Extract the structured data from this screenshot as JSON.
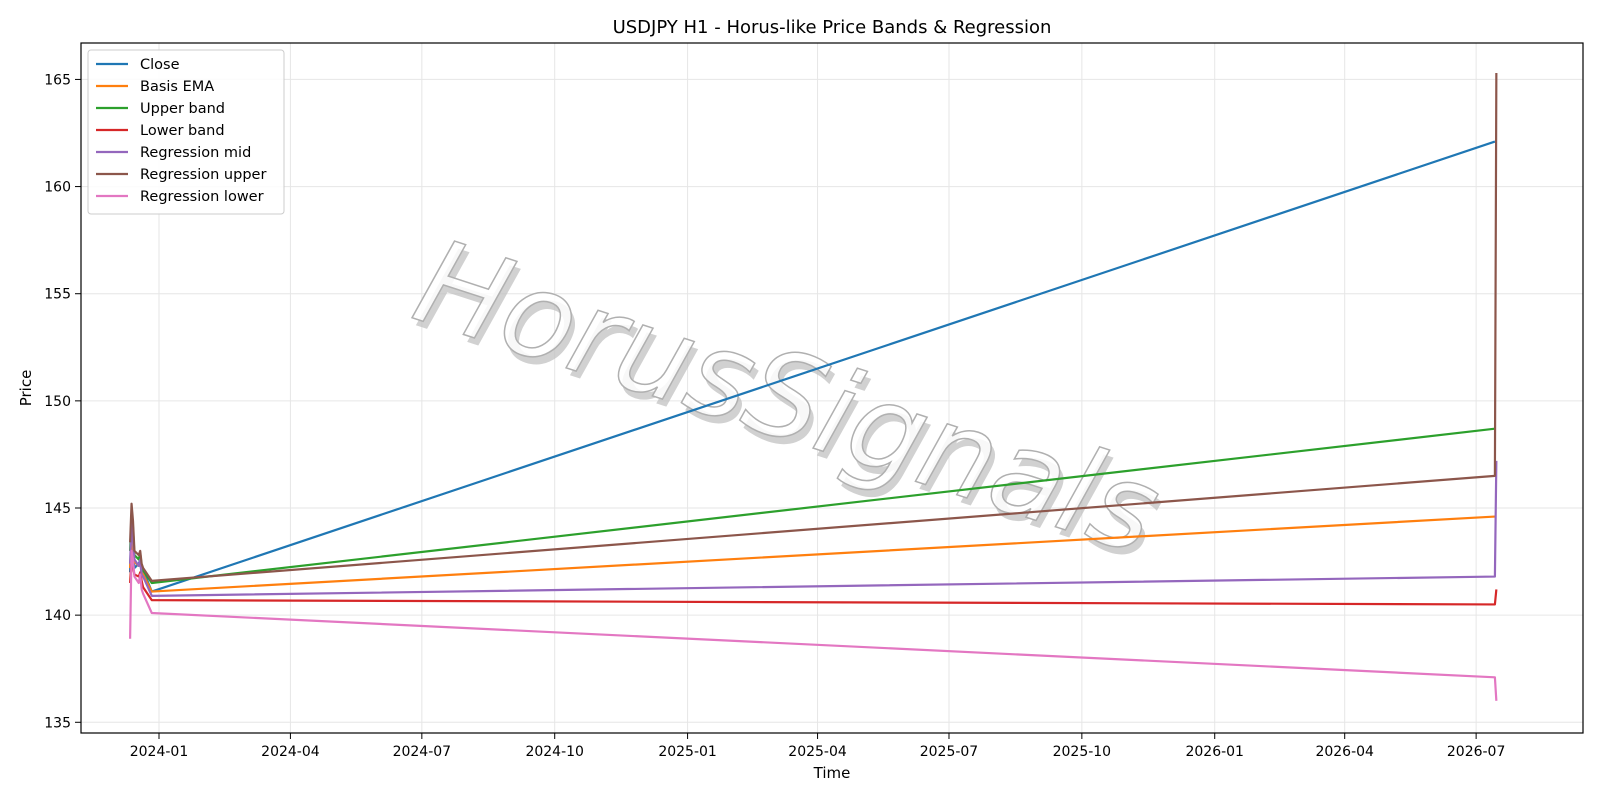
{
  "chart_data": {
    "type": "line",
    "title": "USDJPY H1 - Horus-like Price Bands & Regression",
    "xlabel": "Time",
    "ylabel": "Price",
    "watermark": "HorusSignals",
    "x_axis_type": "date",
    "xlim": [
      "2023-11-08",
      "2026-09-13"
    ],
    "ylim": [
      134.5,
      166.7
    ],
    "x_ticks": [
      "2024-01",
      "2024-04",
      "2024-07",
      "2024-10",
      "2025-01",
      "2025-04",
      "2025-07",
      "2025-10",
      "2026-01",
      "2026-04",
      "2026-07"
    ],
    "y_ticks": [
      135,
      140,
      145,
      150,
      155,
      160,
      165
    ],
    "grid": true,
    "legend_position": "upper-left",
    "series": [
      {
        "name": "Close",
        "color": "#1f77b4",
        "points": [
          [
            "2023-12-12",
            142.0
          ],
          [
            "2023-12-13",
            144.4
          ],
          [
            "2023-12-14",
            143.0
          ],
          [
            "2023-12-15",
            142.2
          ],
          [
            "2023-12-18",
            142.4
          ],
          [
            "2023-12-19",
            142.6
          ],
          [
            "2023-12-20",
            141.8
          ],
          [
            "2023-12-21",
            142.1
          ],
          [
            "2023-12-27",
            141.1
          ],
          [
            "2026-07-14",
            162.1
          ]
        ]
      },
      {
        "name": "Basis EMA",
        "color": "#ff7f0e",
        "points": [
          [
            "2023-12-12",
            142.2
          ],
          [
            "2023-12-13",
            143.6
          ],
          [
            "2023-12-14",
            143.0
          ],
          [
            "2023-12-15",
            142.5
          ],
          [
            "2023-12-18",
            142.3
          ],
          [
            "2023-12-19",
            142.5
          ],
          [
            "2023-12-20",
            142.0
          ],
          [
            "2023-12-21",
            141.9
          ],
          [
            "2023-12-27",
            141.1
          ],
          [
            "2026-07-14",
            144.6
          ]
        ]
      },
      {
        "name": "Upper band",
        "color": "#2ca02c",
        "points": [
          [
            "2023-12-12",
            143.0
          ],
          [
            "2023-12-13",
            144.7
          ],
          [
            "2023-12-14",
            144.1
          ],
          [
            "2023-12-15",
            142.8
          ],
          [
            "2023-12-18",
            142.6
          ],
          [
            "2023-12-19",
            142.9
          ],
          [
            "2023-12-20",
            142.3
          ],
          [
            "2023-12-21",
            142.1
          ],
          [
            "2023-12-27",
            141.5
          ],
          [
            "2026-07-14",
            148.7
          ]
        ]
      },
      {
        "name": "Lower band",
        "color": "#d62728",
        "points": [
          [
            "2023-12-12",
            141.5
          ],
          [
            "2023-12-13",
            142.6
          ],
          [
            "2023-12-14",
            142.2
          ],
          [
            "2023-12-15",
            141.9
          ],
          [
            "2023-12-18",
            141.8
          ],
          [
            "2023-12-19",
            142.0
          ],
          [
            "2023-12-20",
            141.6
          ],
          [
            "2023-12-21",
            141.3
          ],
          [
            "2023-12-27",
            140.7
          ],
          [
            "2026-07-14",
            140.5
          ],
          [
            "2026-07-15",
            141.2
          ]
        ]
      },
      {
        "name": "Regression mid",
        "color": "#9467bd",
        "points": [
          [
            "2023-12-12",
            142.4
          ],
          [
            "2023-12-13",
            144.3
          ],
          [
            "2023-12-14",
            143.5
          ],
          [
            "2023-12-15",
            142.6
          ],
          [
            "2023-12-18",
            142.3
          ],
          [
            "2023-12-19",
            142.6
          ],
          [
            "2023-12-20",
            141.9
          ],
          [
            "2023-12-21",
            141.8
          ],
          [
            "2023-12-27",
            140.9
          ],
          [
            "2026-07-14",
            141.8
          ],
          [
            "2026-07-15",
            147.2
          ]
        ]
      },
      {
        "name": "Regression upper",
        "color": "#8c564b",
        "points": [
          [
            "2023-12-12",
            143.4
          ],
          [
            "2023-12-13",
            145.2
          ],
          [
            "2023-12-14",
            144.4
          ],
          [
            "2023-12-15",
            143.0
          ],
          [
            "2023-12-18",
            142.8
          ],
          [
            "2023-12-19",
            143.0
          ],
          [
            "2023-12-20",
            142.4
          ],
          [
            "2023-12-21",
            142.2
          ],
          [
            "2023-12-27",
            141.6
          ],
          [
            "2026-07-14",
            146.5
          ],
          [
            "2026-07-15",
            165.3
          ]
        ]
      },
      {
        "name": "Regression lower",
        "color": "#e377c2",
        "points": [
          [
            "2023-12-12",
            138.9
          ],
          [
            "2023-12-13",
            143.0
          ],
          [
            "2023-12-14",
            142.6
          ],
          [
            "2023-12-15",
            141.8
          ],
          [
            "2023-12-18",
            141.5
          ],
          [
            "2023-12-19",
            141.9
          ],
          [
            "2023-12-20",
            141.2
          ],
          [
            "2023-12-21",
            141.0
          ],
          [
            "2023-12-27",
            140.1
          ],
          [
            "2026-07-14",
            137.1
          ],
          [
            "2026-07-15",
            136.0
          ]
        ]
      }
    ]
  }
}
